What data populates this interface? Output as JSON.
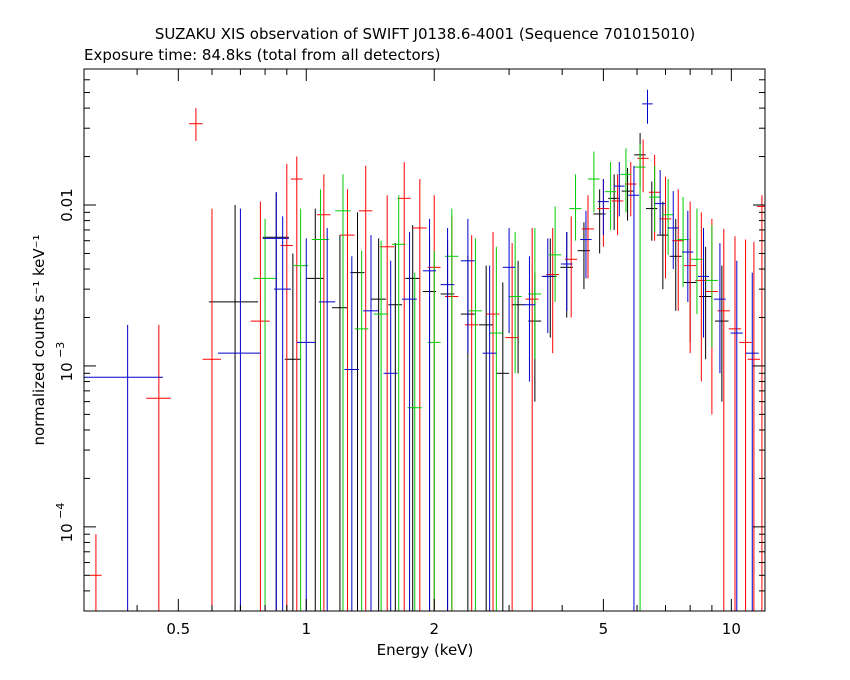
{
  "chart_data": {
    "type": "scatter",
    "title": "SUZAKU XIS observation of SWIFT J0138.6-4001 (Sequence 701015010)",
    "subtitle": "Exposure time: 84.8ks (total from all detectors)",
    "xlabel": "Energy (keV)",
    "ylabel": "normalized counts s⁻¹ keV⁻¹",
    "xscale": "log",
    "yscale": "log",
    "xlim": [
      0.3,
      12.0
    ],
    "ylim": [
      3e-05,
      0.07
    ],
    "x_ticks": [
      {
        "value": 0.5,
        "label": "0.5"
      },
      {
        "value": 1,
        "label": "1"
      },
      {
        "value": 2,
        "label": "2"
      },
      {
        "value": 5,
        "label": "5"
      },
      {
        "value": 10,
        "label": "10"
      }
    ],
    "y_ticks": [
      {
        "value": 0.0001,
        "base": "10",
        "exp": "−4"
      },
      {
        "value": 0.001,
        "base": "10",
        "exp": "−3"
      },
      {
        "value": 0.01,
        "label": "0.01"
      }
    ],
    "series": [
      {
        "color": "#000000",
        "x": [
          0.68,
          0.85,
          0.93,
          1.05,
          1.2,
          1.32,
          1.48,
          1.62,
          1.78,
          1.95,
          2.15,
          2.4,
          2.65,
          2.9,
          3.15,
          3.45,
          3.75,
          4.1,
          4.5,
          4.9,
          5.3,
          5.7,
          6.1,
          6.5,
          6.9,
          7.4,
          8.0,
          8.7,
          9.5
        ],
        "y": [
          0.0025,
          0.0063,
          0.0011,
          0.0035,
          0.0023,
          0.0038,
          0.0026,
          0.0024,
          0.0035,
          0.0029,
          0.0028,
          0.0021,
          0.0018,
          0.0009,
          0.0024,
          0.0019,
          0.0036,
          0.0041,
          0.0052,
          0.0088,
          0.011,
          0.0122,
          0.0205,
          0.0095,
          0.0065,
          0.0048,
          0.0033,
          0.0027,
          0.0019
        ],
        "xerr": [
          0.09,
          0.06,
          0.04,
          0.05,
          0.05,
          0.05,
          0.06,
          0.06,
          0.07,
          0.07,
          0.08,
          0.09,
          0.1,
          0.1,
          0.11,
          0.12,
          0.13,
          0.14,
          0.15,
          0.16,
          0.17,
          0.18,
          0.19,
          0.2,
          0.22,
          0.24,
          0.27,
          0.3,
          0.35
        ],
        "ylo": [
          3e-05,
          3e-05,
          3e-05,
          3e-05,
          3e-05,
          3e-05,
          3e-05,
          3e-05,
          3e-05,
          3e-05,
          3e-05,
          3e-05,
          3e-05,
          3e-05,
          0.0009,
          0.0006,
          0.0015,
          0.002,
          0.003,
          0.005,
          0.007,
          0.008,
          0.013,
          0.006,
          0.003,
          0.0022,
          0.0014,
          0.0011,
          0.0006
        ],
        "yhi": [
          0.01,
          0.012,
          0.005,
          0.0095,
          0.0065,
          0.009,
          0.0062,
          0.0058,
          0.0075,
          0.0062,
          0.006,
          0.0048,
          0.0042,
          0.0033,
          0.0045,
          0.0038,
          0.0062,
          0.0068,
          0.0078,
          0.0125,
          0.0155,
          0.017,
          0.028,
          0.014,
          0.0105,
          0.0082,
          0.0062,
          0.0055,
          0.0042
        ]
      },
      {
        "color": "#ff0000",
        "x": [
          0.32,
          0.45,
          0.55,
          0.6,
          0.78,
          0.9,
          0.95,
          1.1,
          1.25,
          1.38,
          1.55,
          1.7,
          1.85,
          2.0,
          2.2,
          2.45,
          2.75,
          3.05,
          3.4,
          3.8,
          4.2,
          4.6,
          5.0,
          5.4,
          5.8,
          6.2,
          6.6,
          7.0,
          7.5,
          8.0,
          8.5,
          9.0,
          9.6,
          10.2,
          10.8,
          11.3,
          11.8
        ],
        "y": [
          5e-05,
          0.00063,
          0.032,
          0.0011,
          0.0019,
          0.0056,
          0.0145,
          0.0087,
          0.0065,
          0.0092,
          0.0055,
          0.011,
          0.0072,
          0.0041,
          0.0027,
          0.0018,
          0.0021,
          0.0015,
          0.0026,
          0.0037,
          0.0046,
          0.0071,
          0.0095,
          0.0106,
          0.0135,
          0.0195,
          0.012,
          0.0082,
          0.006,
          0.0042,
          0.0034,
          0.0029,
          0.0022,
          0.0017,
          0.0014,
          0.0011,
          0.0098
        ],
        "xerr": [
          0.01,
          0.03,
          0.02,
          0.03,
          0.04,
          0.03,
          0.03,
          0.04,
          0.05,
          0.05,
          0.06,
          0.06,
          0.07,
          0.07,
          0.08,
          0.09,
          0.1,
          0.11,
          0.12,
          0.13,
          0.14,
          0.15,
          0.16,
          0.17,
          0.18,
          0.19,
          0.2,
          0.22,
          0.24,
          0.26,
          0.28,
          0.3,
          0.32,
          0.34,
          0.36,
          0.38,
          0.3
        ],
        "ylo": [
          3e-05,
          3e-05,
          0.025,
          3e-05,
          3e-05,
          3e-05,
          3e-05,
          3e-05,
          3e-05,
          3e-05,
          3e-05,
          3e-05,
          3e-05,
          3e-05,
          3e-05,
          3e-05,
          3e-05,
          3e-05,
          3e-05,
          0.0012,
          0.002,
          0.0035,
          0.0055,
          0.0065,
          0.0085,
          0.012,
          0.006,
          0.0035,
          0.0022,
          0.0012,
          0.0008,
          0.0005,
          3e-05,
          3e-05,
          3e-05,
          3e-05,
          3e-05
        ],
        "yhi": [
          9e-05,
          0.0018,
          0.04,
          0.0095,
          0.0105,
          0.018,
          0.02,
          0.0155,
          0.0125,
          0.0175,
          0.0115,
          0.0185,
          0.0145,
          0.0115,
          0.0085,
          0.0065,
          0.0068,
          0.0058,
          0.0072,
          0.0072,
          0.0085,
          0.0115,
          0.0145,
          0.0155,
          0.0185,
          0.0255,
          0.0205,
          0.015,
          0.0125,
          0.0105,
          0.009,
          0.0082,
          0.0071,
          0.0064,
          0.0061,
          0.0059,
          0.0115
        ]
      },
      {
        "color": "#00cc00",
        "x": [
          0.8,
          0.97,
          1.08,
          1.22,
          1.35,
          1.5,
          1.65,
          1.8,
          2.0,
          2.2,
          2.5,
          2.8,
          3.1,
          3.45,
          3.85,
          4.3,
          4.75,
          5.2,
          5.65,
          6.1,
          6.6,
          7.1,
          7.7,
          8.3,
          9.0
        ],
        "y": [
          0.0035,
          0.0042,
          0.0061,
          0.0092,
          0.0017,
          0.0021,
          0.0057,
          0.00055,
          0.0014,
          0.0048,
          0.0022,
          0.0016,
          0.0027,
          0.0028,
          0.0049,
          0.0095,
          0.0145,
          0.0121,
          0.0155,
          0.0172,
          0.0112,
          0.0087,
          0.0061,
          0.0046,
          0.0034
        ],
        "xerr": [
          0.05,
          0.04,
          0.05,
          0.05,
          0.05,
          0.06,
          0.06,
          0.07,
          0.07,
          0.08,
          0.09,
          0.1,
          0.11,
          0.12,
          0.13,
          0.14,
          0.15,
          0.16,
          0.17,
          0.18,
          0.2,
          0.22,
          0.24,
          0.26,
          0.3
        ],
        "ylo": [
          3e-05,
          3e-05,
          3e-05,
          3e-05,
          3e-05,
          3e-05,
          3e-05,
          3e-05,
          3e-05,
          3e-05,
          3e-05,
          3e-05,
          0.0009,
          0.0011,
          0.0025,
          0.006,
          0.009,
          0.007,
          0.009,
          3e-05,
          0.0068,
          0.0049,
          0.0031,
          0.0021,
          0.0013
        ],
        "yhi": [
          0.0082,
          0.0095,
          0.0125,
          0.0155,
          0.0052,
          0.006,
          0.0115,
          0.0038,
          0.0052,
          0.0095,
          0.0062,
          0.0055,
          0.0068,
          0.0072,
          0.0098,
          0.0155,
          0.0215,
          0.0185,
          0.0225,
          0.024,
          0.0175,
          0.0145,
          0.0112,
          0.0095,
          0.0075
        ]
      },
      {
        "color": "#0000cc",
        "x": [
          0.38,
          0.7,
          0.85,
          0.88,
          1.0,
          1.12,
          1.28,
          1.42,
          1.58,
          1.75,
          1.95,
          2.15,
          2.4,
          2.7,
          3.0,
          3.35,
          3.7,
          4.1,
          4.55,
          5.0,
          5.45,
          5.9,
          6.35,
          6.8,
          7.3,
          7.9,
          8.6,
          9.4,
          10.3,
          11.2
        ],
        "y": [
          0.00085,
          0.0012,
          0.0062,
          0.003,
          0.0014,
          0.0025,
          0.00095,
          0.0022,
          0.0009,
          0.0026,
          0.0039,
          0.0032,
          0.0045,
          0.0012,
          0.0041,
          0.0024,
          0.0036,
          0.0043,
          0.0061,
          0.0105,
          0.0131,
          0.0115,
          0.0425,
          0.0102,
          0.0072,
          0.0051,
          0.0036,
          0.0026,
          0.0016,
          0.0012
        ],
        "xerr": [
          0.08,
          0.08,
          0.06,
          0.04,
          0.05,
          0.05,
          0.05,
          0.06,
          0.06,
          0.07,
          0.07,
          0.08,
          0.09,
          0.1,
          0.1,
          0.11,
          0.12,
          0.13,
          0.14,
          0.15,
          0.16,
          0.17,
          0.18,
          0.2,
          0.22,
          0.24,
          0.26,
          0.3,
          0.34,
          0.4
        ],
        "ylo": [
          3e-05,
          3e-05,
          3e-05,
          3e-05,
          3e-05,
          3e-05,
          3e-05,
          3e-05,
          3e-05,
          3e-05,
          3e-05,
          3e-05,
          0.0012,
          3e-05,
          0.0016,
          0.0008,
          0.0016,
          0.0022,
          0.0035,
          0.0065,
          0.0085,
          3e-05,
          0.032,
          0.0065,
          0.004,
          0.0025,
          0.0015,
          0.0009,
          3e-05,
          3e-05
        ],
        "yhi": [
          0.0018,
          0.0095,
          0.012,
          0.0085,
          0.0062,
          0.0072,
          0.0048,
          0.0065,
          0.0045,
          0.0068,
          0.0082,
          0.0072,
          0.0082,
          0.0042,
          0.0072,
          0.0048,
          0.0062,
          0.0068,
          0.0092,
          0.0145,
          0.0185,
          0.0175,
          0.052,
          0.0165,
          0.0122,
          0.0092,
          0.0072,
          0.0058,
          0.0045,
          0.0038
        ]
      }
    ]
  }
}
